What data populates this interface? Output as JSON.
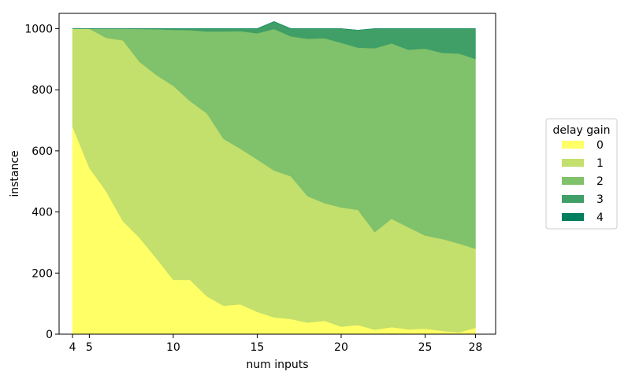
{
  "chart_data": {
    "type": "area",
    "stacked": true,
    "xlabel": "num inputs",
    "ylabel": "instance",
    "xticks": [
      4,
      5,
      10,
      15,
      20,
      25,
      28
    ],
    "yticks": [
      0,
      200,
      400,
      600,
      800,
      1000
    ],
    "xlim": [
      3.2,
      29.2
    ],
    "ylim": [
      0,
      1050
    ],
    "grid": false,
    "legend": {
      "title": "delay gain",
      "position": "right"
    },
    "x": [
      4,
      5,
      6,
      7,
      8,
      9,
      10,
      11,
      12,
      13,
      14,
      15,
      16,
      17,
      18,
      19,
      20,
      21,
      22,
      23,
      24,
      25,
      26,
      27,
      28
    ],
    "series": [
      {
        "name": "0",
        "color": "#ffff66",
        "values": [
          680,
          545,
          468,
          370,
          315,
          248,
          178,
          178,
          124,
          93,
          98,
          73,
          55,
          50,
          38,
          44,
          25,
          30,
          15,
          23,
          16,
          18,
          11,
          6,
          21
        ]
      },
      {
        "name": "1",
        "color": "#c3df6c",
        "values": [
          320,
          455,
          502,
          592,
          576,
          600,
          635,
          585,
          599,
          546,
          509,
          499,
          481,
          467,
          414,
          385,
          390,
          377,
          319,
          355,
          334,
          305,
          301,
          291,
          259
        ]
      },
      {
        "name": "2",
        "color": "#80c16b",
        "values": [
          0,
          0,
          30,
          38,
          108,
          150,
          183,
          232,
          268,
          352,
          385,
          413,
          463,
          458,
          515,
          540,
          539,
          531,
          602,
          574,
          581,
          612,
          609,
          622,
          621
        ]
      },
      {
        "name": "3",
        "color": "#3f9f66",
        "values": [
          0,
          0,
          0,
          0,
          1,
          2,
          4,
          5,
          9,
          9,
          8,
          15,
          24,
          25,
          33,
          31,
          46,
          57,
          64,
          48,
          69,
          65,
          79,
          81,
          99
        ]
      },
      {
        "name": "4",
        "color": "#007f5f",
        "values": [
          0,
          0,
          0,
          0,
          0,
          0,
          0,
          0,
          0,
          0,
          0,
          0,
          0,
          0,
          0,
          0,
          0,
          0,
          0,
          0,
          0,
          0,
          0,
          0,
          0
        ]
      }
    ]
  }
}
